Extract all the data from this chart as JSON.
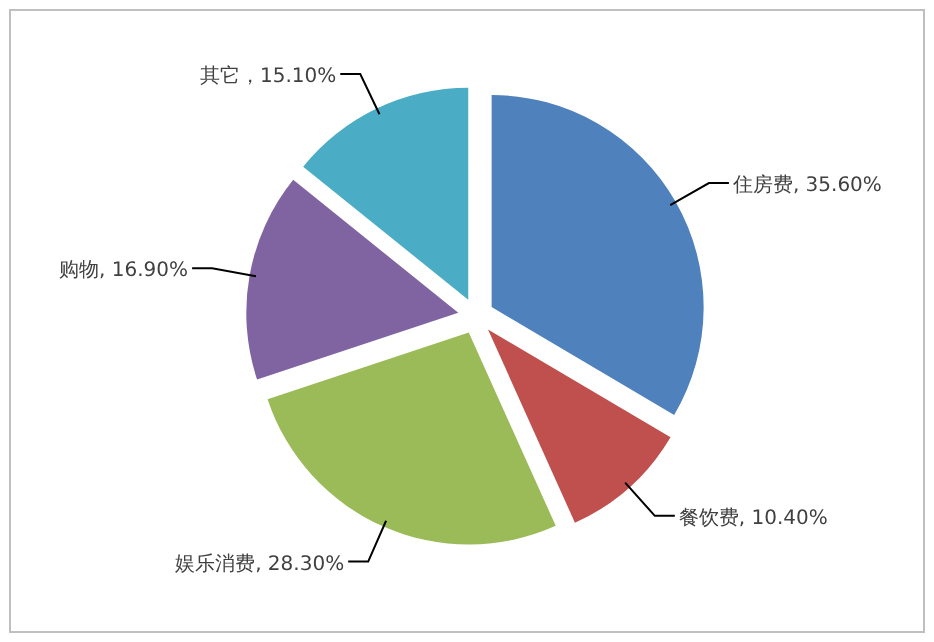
{
  "chart_data": {
    "type": "pie",
    "categories": [
      "住房费",
      "餐饮费",
      "娱乐消费",
      "购物",
      "其它"
    ],
    "values": [
      35.6,
      10.4,
      28.3,
      16.9,
      15.1
    ],
    "value_labels": [
      ", 35.60%",
      ", 10.40%",
      ", 28.30%",
      ", 16.90%",
      "，15.10%"
    ],
    "colors": [
      "#4f81bd",
      "#c0504d",
      "#9bbb59",
      "#8064a2",
      "#4bacc6"
    ],
    "legend": false
  }
}
